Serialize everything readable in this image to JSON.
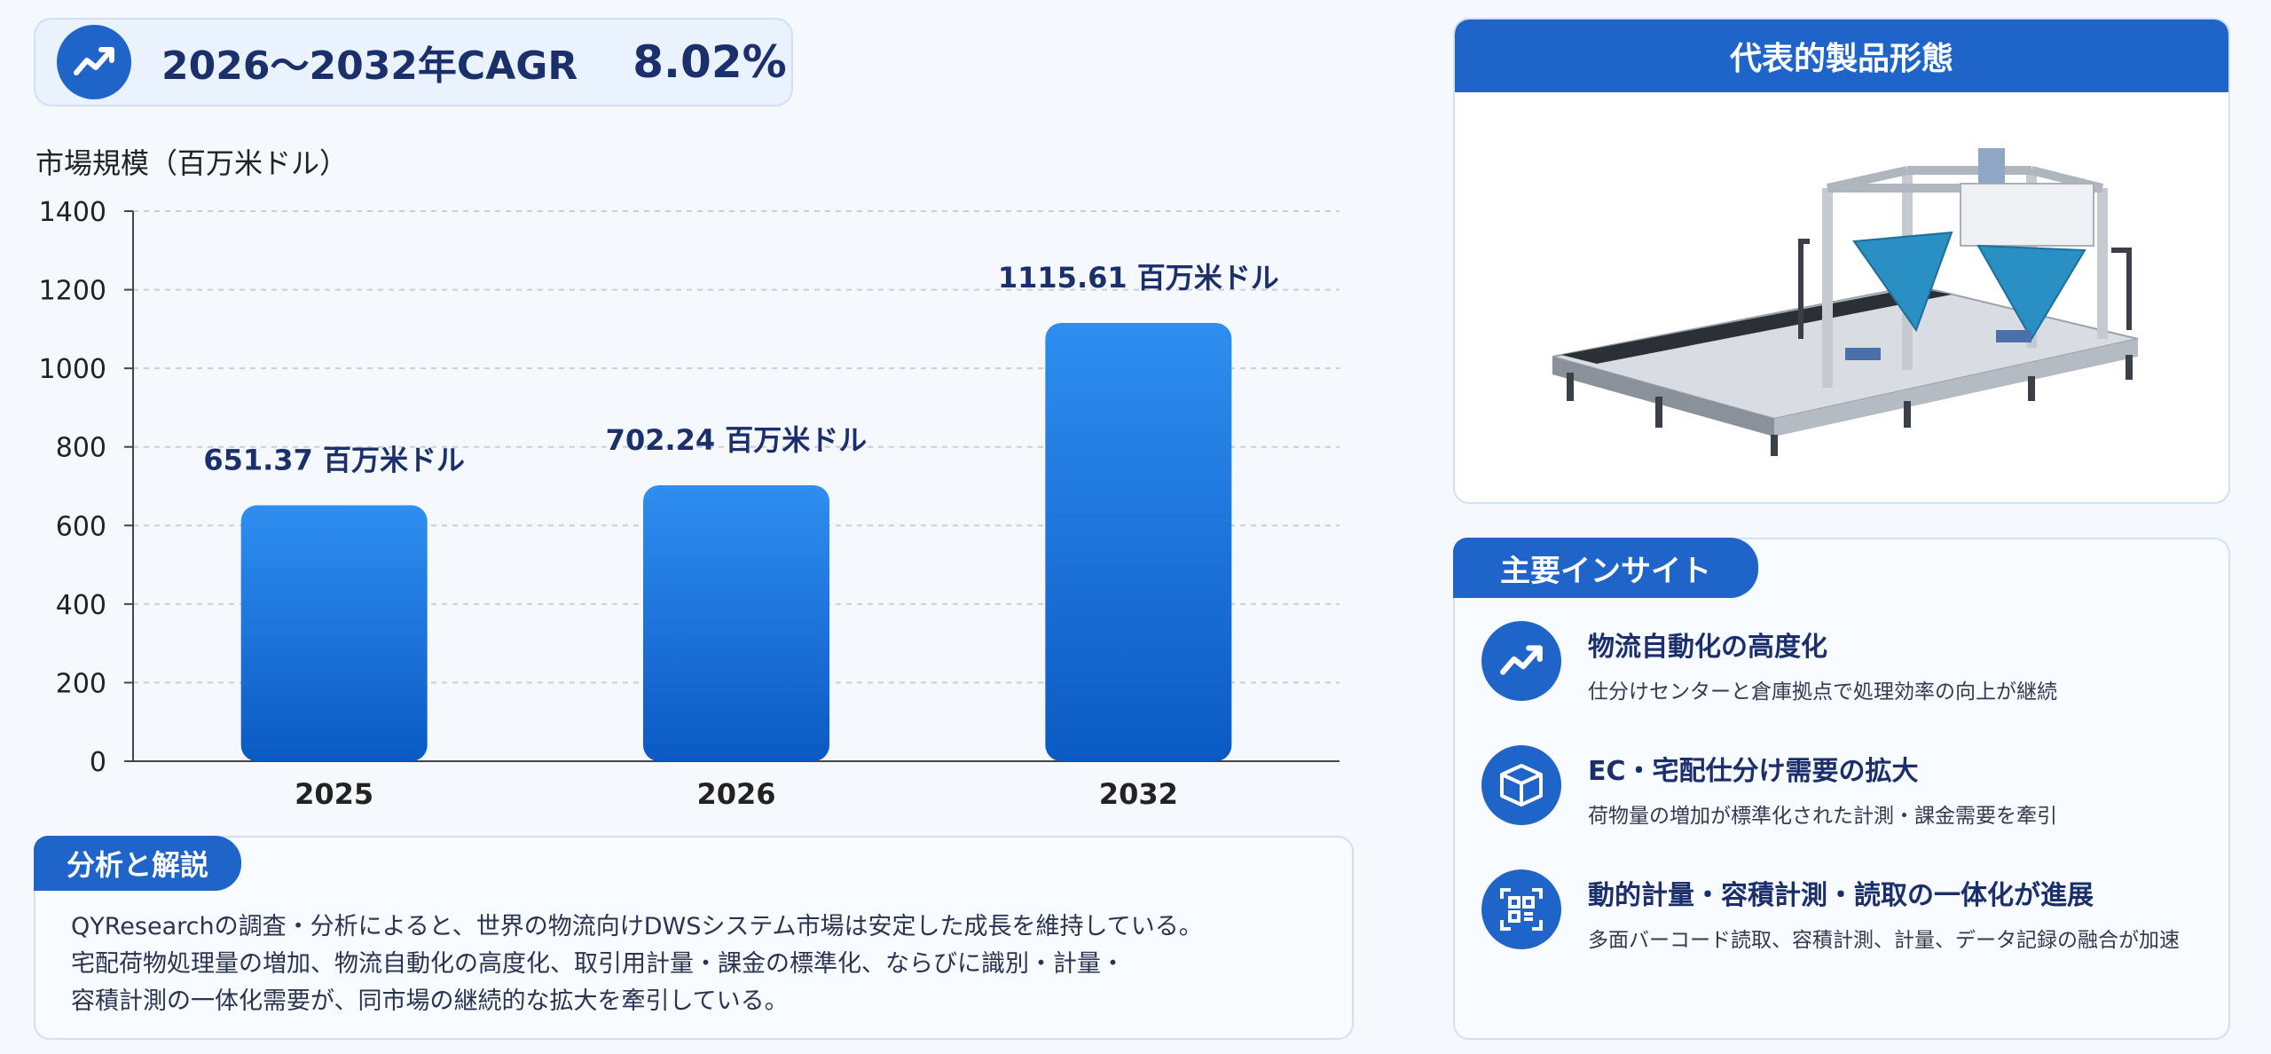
{
  "cagr": {
    "label": "2026～2032年CAGR",
    "value": "8.02%",
    "icon": "trend-up-icon"
  },
  "chart_data": {
    "type": "bar",
    "ylabel": "市場規模（百万米ドル）",
    "categories": [
      "2025",
      "2026",
      "2032"
    ],
    "values": [
      651.37,
      702.24,
      1115.61
    ],
    "value_labels": [
      "651.37 百万米ドル",
      "702.24 百万米ドル",
      "1115.61 百万米ドル"
    ],
    "ylim": [
      0,
      1400
    ],
    "yticks": [
      0,
      200,
      400,
      600,
      800,
      1000,
      1200,
      1400
    ],
    "grid": true,
    "bar_color_top": "#2f8ef0",
    "bar_color_bottom": "#0b5ac4"
  },
  "analysis": {
    "title": "分析と解説",
    "lines": [
      "QYResearchの調査・分析によると、世界の物流向けDWSシステム市場は安定した成長を維持している。",
      "宅配荷物処理量の増加、物流自動化の高度化、取引用計量・課金の標準化、ならびに識別・計量・",
      "容積計測の一体化需要が、同市場の継続的な拡大を牽引している。"
    ]
  },
  "product": {
    "title": "代表的製品形態",
    "image": "dws-system-machine"
  },
  "insights": {
    "title": "主要インサイト",
    "items": [
      {
        "icon": "trend-up-icon",
        "title": "物流自動化の高度化",
        "desc": "仕分けセンターと倉庫拠点で処理効率の向上が継続"
      },
      {
        "icon": "package-box-icon",
        "title": "EC・宅配仕分け需要の拡大",
        "desc": "荷物量の増加が標準化された計測・課金需要を牽引"
      },
      {
        "icon": "qr-scan-icon",
        "title": "動的計量・容積計測・読取の一体化が進展",
        "desc": "多面バーコード読取、容積計測、計量、データ記録の融合が加速"
      }
    ]
  },
  "colors": {
    "accent": "#1f64c8",
    "title_text": "#1a2f6b"
  }
}
